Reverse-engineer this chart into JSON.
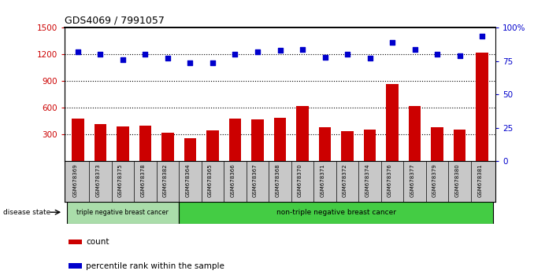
{
  "title": "GDS4069 / 7991057",
  "samples": [
    "GSM678369",
    "GSM678373",
    "GSM678375",
    "GSM678378",
    "GSM678382",
    "GSM678364",
    "GSM678365",
    "GSM678366",
    "GSM678367",
    "GSM678368",
    "GSM678370",
    "GSM678371",
    "GSM678372",
    "GSM678374",
    "GSM678376",
    "GSM678377",
    "GSM678379",
    "GSM678380",
    "GSM678381"
  ],
  "counts": [
    480,
    420,
    390,
    400,
    320,
    260,
    350,
    480,
    470,
    490,
    620,
    380,
    340,
    360,
    870,
    620,
    380,
    360,
    1220
  ],
  "percentiles": [
    82,
    80,
    76,
    80,
    77,
    74,
    74,
    80,
    82,
    83,
    84,
    78,
    80,
    77,
    89,
    84,
    80,
    79,
    94
  ],
  "group1_count": 5,
  "group1_label": "triple negative breast cancer",
  "group2_label": "non-triple negative breast cancer",
  "bar_color": "#cc0000",
  "dot_color": "#0000cc",
  "ylim_left": [
    0,
    1500
  ],
  "ylim_right": [
    0,
    100
  ],
  "yticks_left": [
    300,
    600,
    900,
    1200,
    1500
  ],
  "yticks_right": [
    0,
    25,
    50,
    75,
    100
  ],
  "dotted_lines": [
    300,
    600,
    900,
    1200
  ],
  "legend_count_label": "count",
  "legend_pct_label": "percentile rank within the sample",
  "group1_facecolor": "#aaddaa",
  "group2_facecolor": "#44cc44",
  "tick_bg_color": "#c8c8c8",
  "disease_state_label": "disease state"
}
